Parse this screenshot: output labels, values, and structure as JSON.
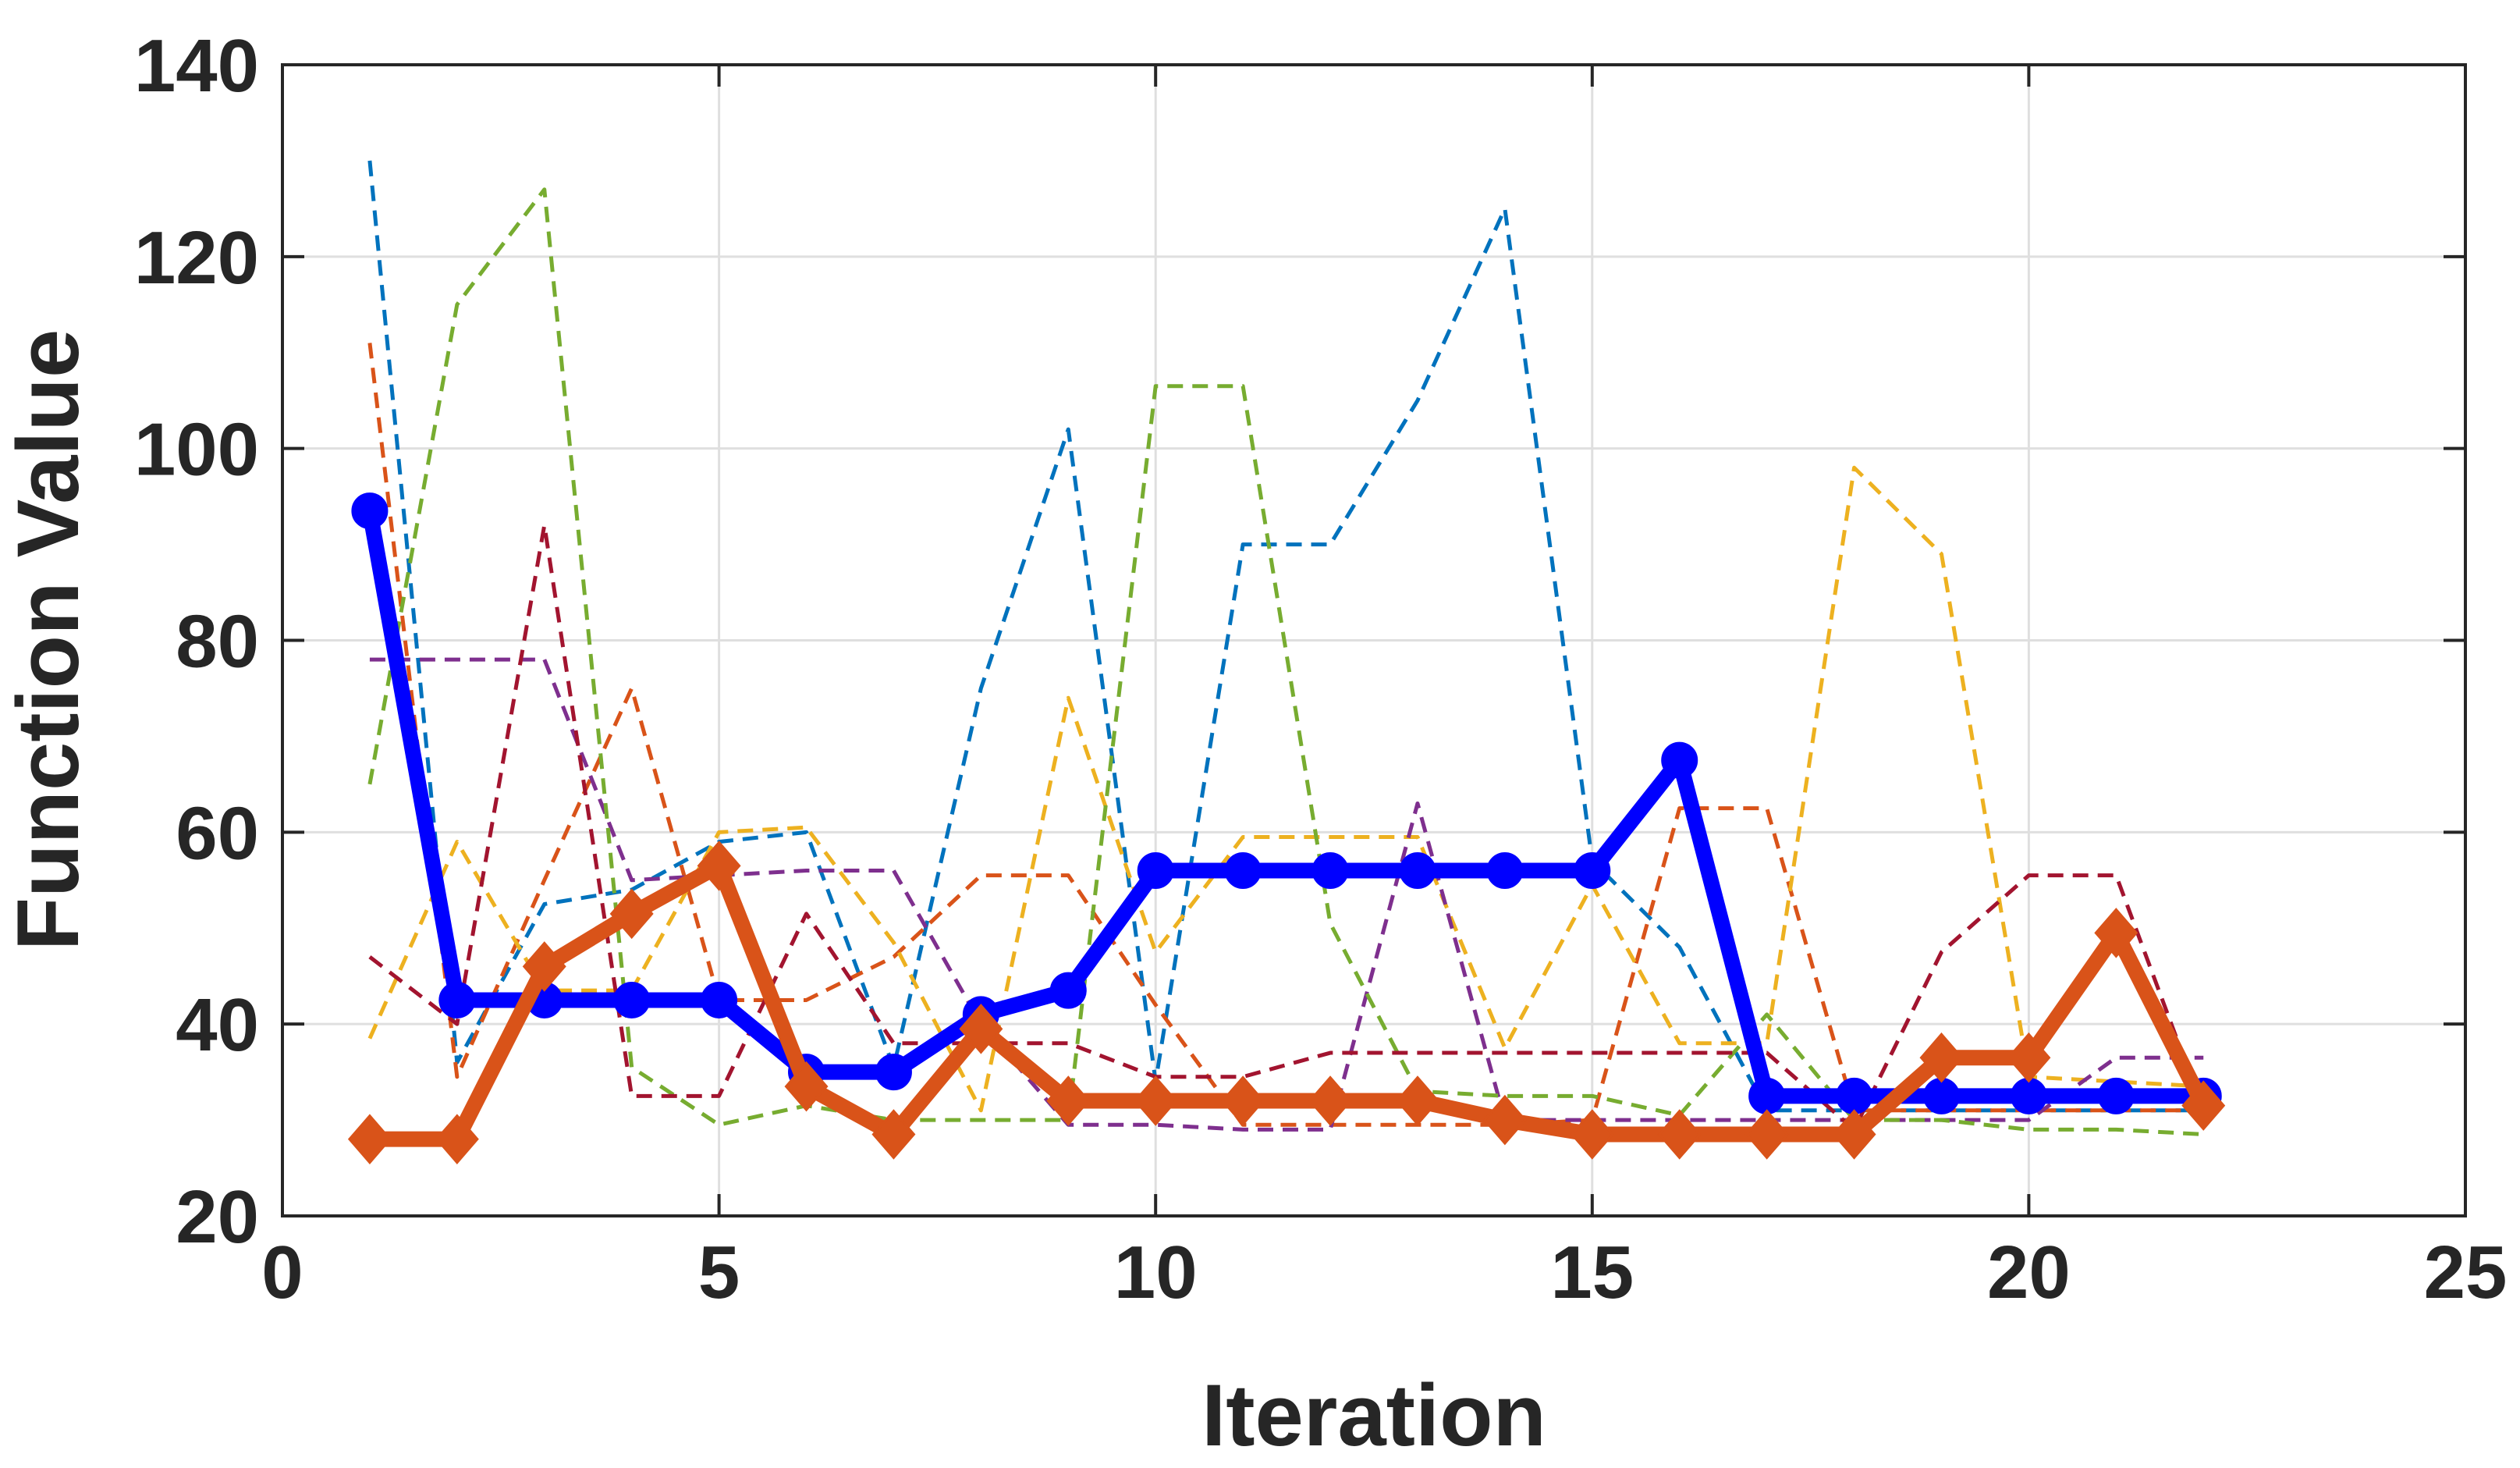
{
  "chart_data": {
    "type": "line",
    "title": "",
    "xlabel": "Iteration",
    "ylabel": "Function Value",
    "xlim": [
      0,
      25
    ],
    "ylim": [
      20,
      140
    ],
    "xticks": [
      0,
      5,
      10,
      15,
      20,
      25
    ],
    "yticks": [
      20,
      40,
      60,
      80,
      100,
      120,
      140
    ],
    "grid": true,
    "x": [
      1,
      2,
      3,
      4,
      5,
      6,
      7,
      8,
      9,
      10,
      11,
      12,
      13,
      14,
      15,
      16,
      17,
      18,
      19,
      20,
      21,
      22
    ],
    "series": [
      {
        "name": "blue-circle",
        "color": "#0000ff",
        "style": "solid",
        "marker": "circle",
        "values": [
          93.5,
          42.5,
          42.5,
          42.5,
          42.5,
          35,
          35,
          41,
          43.5,
          56,
          56,
          56,
          56,
          56,
          56,
          67.5,
          32.5,
          32.5,
          32.5,
          32.5,
          32.5,
          32.5
        ]
      },
      {
        "name": "orange-diamond",
        "color": "#d95319",
        "style": "solid",
        "marker": "diamond",
        "values": [
          28,
          28,
          46,
          51.5,
          56.5,
          33.5,
          28.5,
          39.5,
          32,
          32,
          32,
          32,
          32,
          30,
          28.5,
          28.5,
          28.5,
          28.5,
          36.5,
          36.5,
          49.5,
          31.5
        ]
      },
      {
        "name": "dashed-blue",
        "color": "#0072bd",
        "style": "dashed",
        "values": [
          130,
          36,
          52.5,
          54,
          59,
          60,
          35.5,
          75,
          102,
          34,
          90,
          90,
          105,
          125,
          57,
          48,
          31,
          31,
          31,
          31,
          31,
          31
        ]
      },
      {
        "name": "dashed-orange",
        "color": "#d95319",
        "style": "dashed",
        "values": [
          111,
          34.5,
          55,
          75,
          42.5,
          42.5,
          47,
          55.5,
          55.5,
          42,
          29.5,
          29.5,
          29.5,
          29.5,
          30,
          62.5,
          62.5,
          31,
          31,
          31,
          31,
          31
        ]
      },
      {
        "name": "dashed-yellow",
        "color": "#edb120",
        "style": "dashed",
        "values": [
          38.5,
          59,
          43.5,
          43.5,
          60,
          60.5,
          48.5,
          31,
          74,
          47.5,
          59.5,
          59.5,
          59.5,
          37.5,
          54.5,
          38,
          38,
          98,
          89,
          34.5,
          34,
          33.5
        ]
      },
      {
        "name": "dashed-purple",
        "color": "#7e2f8e",
        "style": "dashed",
        "values": [
          78,
          78,
          78,
          55,
          55.5,
          56,
          56,
          40,
          29.5,
          29.5,
          29,
          29,
          63,
          30,
          30,
          30,
          30,
          30,
          30,
          30,
          36.5,
          36.5
        ]
      },
      {
        "name": "dashed-green",
        "color": "#77ac30",
        "style": "dashed",
        "values": [
          65,
          115,
          127,
          35.5,
          29.5,
          31.5,
          30,
          30,
          30,
          106.5,
          106.5,
          50.5,
          33,
          32.5,
          32.5,
          30.5,
          41,
          30,
          30,
          29,
          29,
          28.5
        ]
      },
      {
        "name": "dashed-maroon",
        "color": "#a2142f",
        "style": "dashed",
        "values": [
          47,
          40,
          92,
          32.5,
          32.5,
          51.5,
          38,
          38,
          38,
          34.5,
          34.5,
          37,
          37,
          37,
          37,
          37,
          37,
          29,
          47.5,
          55.5,
          55.5,
          31
        ]
      }
    ]
  }
}
